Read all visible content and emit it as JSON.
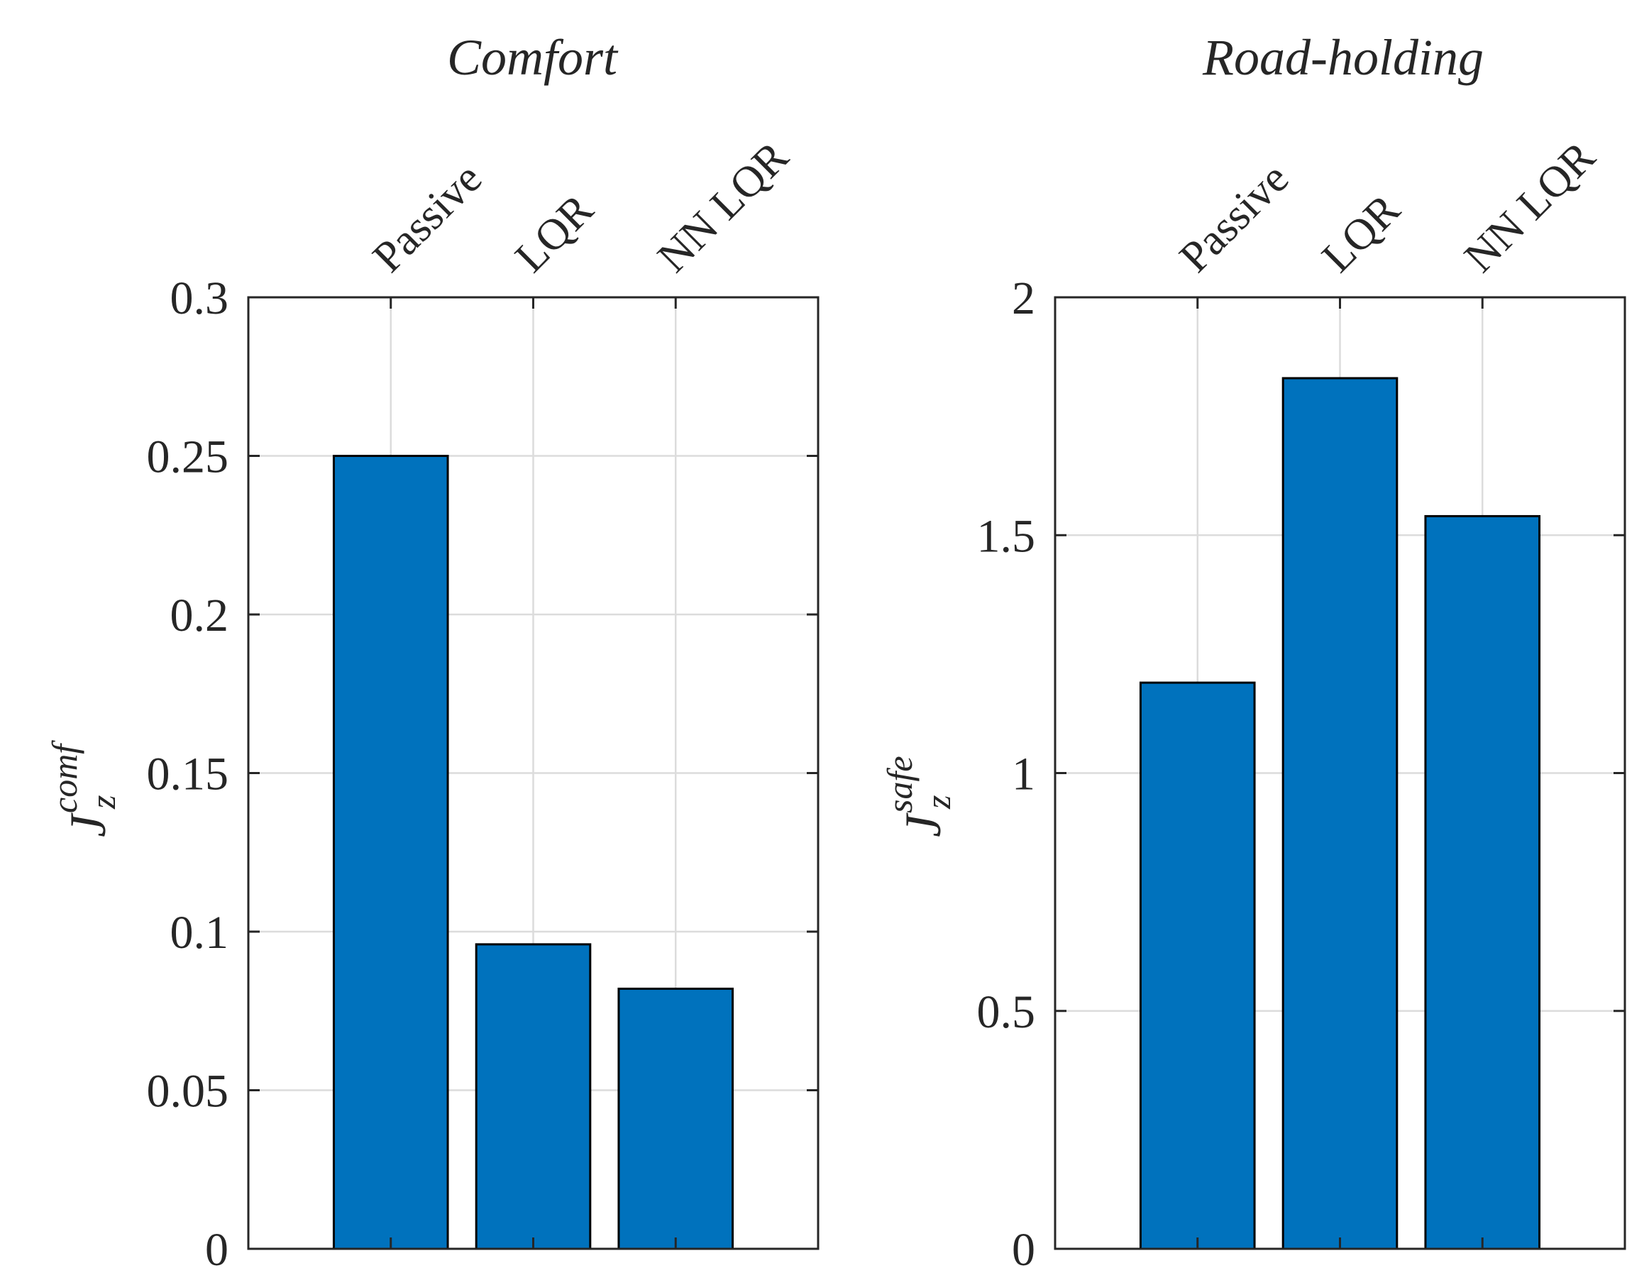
{
  "figure": {
    "panels": [
      "Comfort",
      "Road-holding"
    ]
  },
  "chart_data": [
    {
      "type": "bar",
      "title": "Comfort",
      "categories": [
        "Passive",
        "LQR",
        "NN LQR"
      ],
      "values": [
        0.25,
        0.096,
        0.082
      ],
      "ylabel": {
        "base": "J",
        "sub": "z",
        "sup": "comf"
      },
      "xlabel": "",
      "ylim": [
        0,
        0.3
      ],
      "yticks": [
        "0",
        "0.05",
        "0.1",
        "0.15",
        "0.2",
        "0.25",
        "0.3"
      ],
      "ytick_values": [
        0,
        0.05,
        0.1,
        0.15,
        0.2,
        0.25,
        0.3
      ],
      "grid": true,
      "bar_color": "#0072BD"
    },
    {
      "type": "bar",
      "title": "Road-holding",
      "categories": [
        "Passive",
        "LQR",
        "NN LQR"
      ],
      "values": [
        1.19,
        1.83,
        1.54
      ],
      "ylabel": {
        "base": "J",
        "sub": "z",
        "sup": "safe"
      },
      "xlabel": "",
      "ylim": [
        0,
        2
      ],
      "yticks": [
        "0",
        "0.5",
        "1",
        "1.5",
        "2"
      ],
      "ytick_values": [
        0,
        0.5,
        1,
        1.5,
        2
      ],
      "grid": true,
      "bar_color": "#0072BD"
    }
  ]
}
